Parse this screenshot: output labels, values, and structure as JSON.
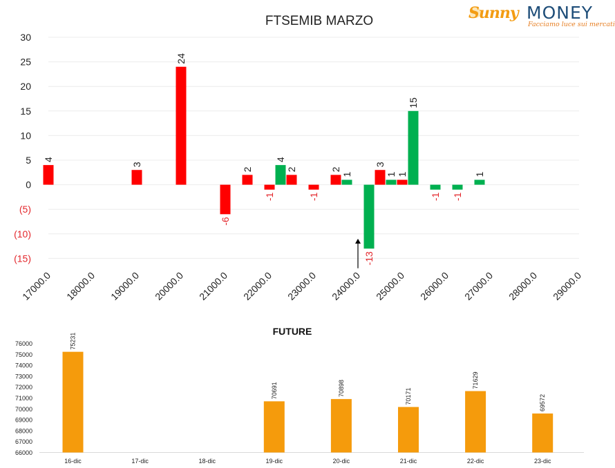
{
  "logo": {
    "brand_left": "Sunny",
    "brand_right": "MONEY",
    "tagline": "Facciamo luce sui mercati",
    "colors": {
      "sunny": "#f39c12",
      "money": "#1f4e79"
    }
  },
  "chart_data": [
    {
      "type": "bar",
      "title": "FTSEMIB MARZO",
      "xlabel": "",
      "ylabel": "",
      "ylim": [
        -15,
        30
      ],
      "yticks": [
        30,
        25,
        20,
        15,
        10,
        5,
        0,
        -5,
        -10,
        -15
      ],
      "ytick_labels": [
        "30",
        "25",
        "20",
        "15",
        "10",
        "5",
        "0",
        "(5)",
        "(10)",
        "(15)"
      ],
      "xlim": [
        17000,
        29000
      ],
      "xticks": [
        17000,
        18000,
        19000,
        20000,
        21000,
        22000,
        23000,
        24000,
        25000,
        26000,
        27000,
        28000,
        29000
      ],
      "xtick_labels": [
        "17000.0",
        "18000.0",
        "19000.0",
        "20000.0",
        "21000.0",
        "22000.0",
        "23000.0",
        "24000.0",
        "25000.0",
        "26000.0",
        "27000.0",
        "28000.0",
        "29000.0"
      ],
      "grid": true,
      "colors": {
        "red": "#ff0000",
        "green": "#00b050",
        "neg_label": "#e3262b"
      },
      "bars": [
        {
          "x": 17000,
          "value": 4,
          "color": "red"
        },
        {
          "x": 19000,
          "value": 3,
          "color": "red"
        },
        {
          "x": 20000,
          "value": 24,
          "color": "red"
        },
        {
          "x": 21000,
          "value": -6,
          "color": "red"
        },
        {
          "x": 21500,
          "value": 2,
          "color": "red"
        },
        {
          "x": 22000,
          "value": -1,
          "color": "red"
        },
        {
          "x": 22250,
          "value": 4,
          "color": "green"
        },
        {
          "x": 22500,
          "value": 2,
          "color": "red"
        },
        {
          "x": 23000,
          "value": -1,
          "color": "red"
        },
        {
          "x": 23500,
          "value": 2,
          "color": "red"
        },
        {
          "x": 23750,
          "value": 1,
          "color": "green"
        },
        {
          "x": 24250,
          "value": -13,
          "color": "green"
        },
        {
          "x": 24500,
          "value": 3,
          "color": "red"
        },
        {
          "x": 24750,
          "value": 1,
          "color": "green"
        },
        {
          "x": 25000,
          "value": 1,
          "color": "red"
        },
        {
          "x": 25250,
          "value": 15,
          "color": "green"
        },
        {
          "x": 25750,
          "value": -1,
          "color": "green"
        },
        {
          "x": 26250,
          "value": -1,
          "color": "green"
        },
        {
          "x": 26750,
          "value": 1,
          "color": "green"
        }
      ],
      "annotations": [
        {
          "type": "arrow",
          "x": 24000,
          "from": -17,
          "to": -11
        }
      ]
    },
    {
      "type": "bar",
      "title": "FUTURE",
      "xlabel": "",
      "ylabel": "",
      "ylim": [
        66000,
        76000
      ],
      "yticks": [
        76000,
        75000,
        74000,
        73000,
        72000,
        71000,
        70000,
        69000,
        68000,
        67000,
        66000
      ],
      "ytick_labels": [
        "76000",
        "75000",
        "74000",
        "73000",
        "72000",
        "71000",
        "70000",
        "69000",
        "68000",
        "67000",
        "66000"
      ],
      "grid": false,
      "color": "#f59b0c",
      "categories": [
        "16-dic",
        "17-dic",
        "18-dic",
        "19-dic",
        "20-dic",
        "21-dic",
        "22-dic",
        "23-dic"
      ],
      "values": [
        75231,
        null,
        null,
        70691,
        70898,
        70171,
        71629,
        69572
      ],
      "data_labels": [
        "75231",
        "",
        "",
        "70691",
        "70898",
        "70171",
        "71629",
        "69572"
      ]
    }
  ]
}
